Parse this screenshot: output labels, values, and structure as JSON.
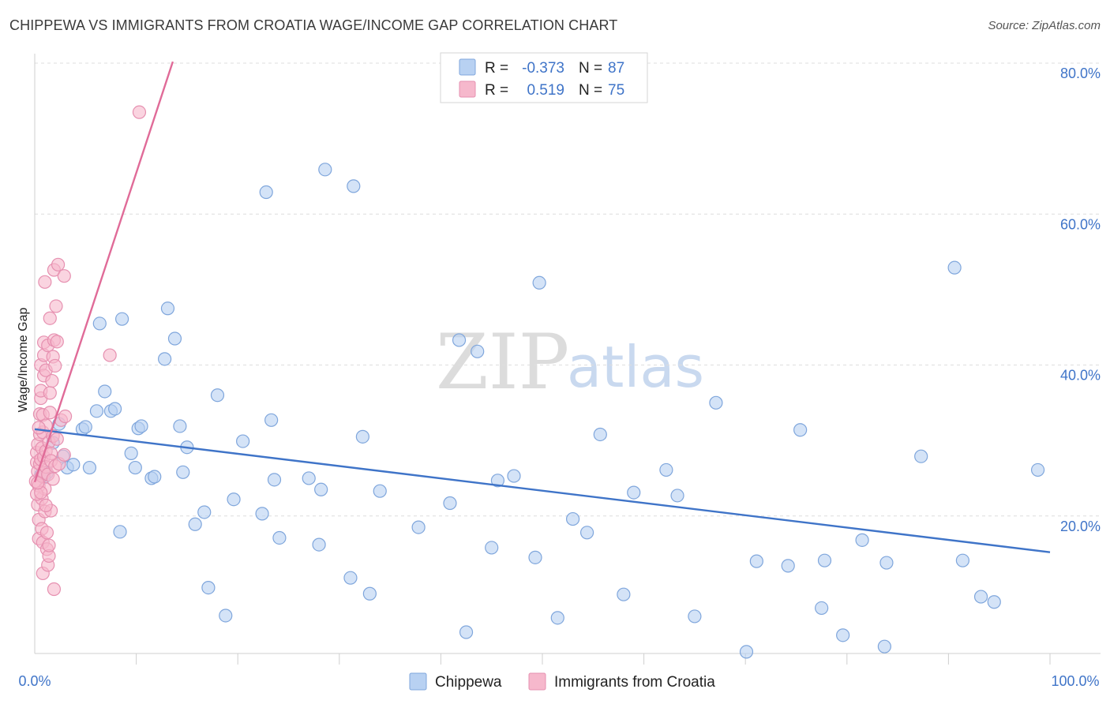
{
  "header": {
    "title": "CHIPPEWA VS IMMIGRANTS FROM CROATIA WAGE/INCOME GAP CORRELATION CHART",
    "source": "Source: ZipAtlas.com"
  },
  "watermark": {
    "zip": "ZIP",
    "atlas": "atlas"
  },
  "colors": {
    "blue": "#3f74c8",
    "blue_fill": "#b8d1f2",
    "pink": "#e06b98",
    "pink_fill": "#f6b8cc",
    "grid": "#dedede"
  },
  "chart_data": {
    "type": "scatter",
    "title": "CHIPPEWA VS IMMIGRANTS FROM CROATIA WAGE/INCOME GAP CORRELATION CHART",
    "xlabel": "",
    "ylabel": "Wage/Income Gap",
    "xlim": [
      0,
      100
    ],
    "ylim": [
      0,
      82
    ],
    "x_tick_labels": [
      "0.0%",
      "100.0%"
    ],
    "y_ticks": [
      20,
      40,
      60,
      80
    ],
    "y_tick_labels": [
      "20.0%",
      "40.0%",
      "60.0%",
      "80.0%"
    ],
    "grid": true,
    "legend": {
      "position": "top-center",
      "entries": [
        {
          "r_label": "R =",
          "r_value": "-0.373",
          "n_label": "N =",
          "n_value": "87"
        },
        {
          "r_label": "R =",
          "r_value": "0.519",
          "n_label": "N =",
          "n_value": "75"
        }
      ]
    },
    "series": [
      {
        "name": "Chippewa",
        "color": "#3f74c8",
        "r": -0.373,
        "n": 87,
        "trend": {
          "x": [
            0,
            100
          ],
          "y": [
            31.5,
            15.2
          ]
        },
        "points": [
          [
            0.6,
            25.4
          ],
          [
            1.2,
            25.7
          ],
          [
            1.8,
            29.7
          ],
          [
            2.4,
            32.2
          ],
          [
            2.8,
            27.9
          ],
          [
            3.2,
            26.4
          ],
          [
            3.8,
            26.8
          ],
          [
            4.7,
            31.5
          ],
          [
            5.0,
            31.8
          ],
          [
            5.4,
            26.4
          ],
          [
            6.1,
            33.9
          ],
          [
            6.4,
            45.5
          ],
          [
            6.9,
            36.5
          ],
          [
            7.5,
            33.9
          ],
          [
            7.9,
            34.2
          ],
          [
            8.4,
            17.9
          ],
          [
            8.6,
            46.1
          ],
          [
            9.5,
            28.3
          ],
          [
            9.9,
            26.4
          ],
          [
            10.2,
            31.6
          ],
          [
            10.5,
            31.9
          ],
          [
            11.5,
            25.0
          ],
          [
            11.8,
            25.2
          ],
          [
            12.8,
            40.8
          ],
          [
            13.1,
            47.5
          ],
          [
            13.8,
            43.5
          ],
          [
            14.3,
            31.9
          ],
          [
            14.6,
            25.8
          ],
          [
            15.0,
            29.1
          ],
          [
            15.8,
            18.9
          ],
          [
            16.7,
            20.5
          ],
          [
            17.1,
            10.5
          ],
          [
            18.0,
            36.0
          ],
          [
            18.8,
            6.8
          ],
          [
            19.6,
            22.2
          ],
          [
            20.5,
            29.9
          ],
          [
            22.4,
            20.3
          ],
          [
            22.8,
            62.9
          ],
          [
            23.3,
            32.7
          ],
          [
            23.6,
            24.8
          ],
          [
            24.1,
            17.1
          ],
          [
            27.0,
            25.0
          ],
          [
            28.0,
            16.2
          ],
          [
            28.2,
            23.5
          ],
          [
            28.6,
            65.9
          ],
          [
            31.1,
            11.8
          ],
          [
            31.4,
            63.7
          ],
          [
            32.3,
            30.5
          ],
          [
            33.0,
            9.7
          ],
          [
            34.0,
            23.3
          ],
          [
            37.8,
            18.5
          ],
          [
            40.9,
            21.7
          ],
          [
            41.8,
            43.3
          ],
          [
            42.5,
            4.6
          ],
          [
            43.6,
            41.8
          ],
          [
            45.0,
            15.8
          ],
          [
            45.6,
            24.7
          ],
          [
            47.2,
            25.3
          ],
          [
            49.3,
            14.5
          ],
          [
            49.7,
            50.9
          ],
          [
            51.5,
            6.5
          ],
          [
            53.0,
            19.6
          ],
          [
            54.4,
            17.8
          ],
          [
            55.7,
            30.8
          ],
          [
            58.0,
            9.6
          ],
          [
            59.0,
            23.1
          ],
          [
            62.2,
            26.1
          ],
          [
            63.3,
            22.7
          ],
          [
            65.0,
            6.7
          ],
          [
            67.1,
            35.0
          ],
          [
            70.1,
            2.0
          ],
          [
            71.1,
            14.0
          ],
          [
            74.2,
            13.4
          ],
          [
            75.4,
            31.4
          ],
          [
            77.5,
            7.8
          ],
          [
            77.8,
            14.1
          ],
          [
            79.6,
            4.2
          ],
          [
            81.5,
            16.8
          ],
          [
            83.7,
            2.7
          ],
          [
            83.9,
            13.8
          ],
          [
            87.3,
            27.9
          ],
          [
            90.6,
            52.9
          ],
          [
            91.4,
            14.1
          ],
          [
            93.2,
            9.3
          ],
          [
            94.5,
            8.6
          ],
          [
            98.8,
            26.1
          ],
          [
            0.9,
            25.1
          ]
        ]
      },
      {
        "name": "Immigrants from Croatia",
        "color": "#e06b98",
        "r": 0.519,
        "n": 75,
        "trend": {
          "x": [
            0,
            13.6
          ],
          "y": [
            24.5,
            80.2
          ]
        },
        "points": [
          [
            0.1,
            24.6
          ],
          [
            0.2,
            27.1
          ],
          [
            0.2,
            28.4
          ],
          [
            0.3,
            21.5
          ],
          [
            0.3,
            25.9
          ],
          [
            0.3,
            29.5
          ],
          [
            0.4,
            17.0
          ],
          [
            0.4,
            19.5
          ],
          [
            0.4,
            24.0
          ],
          [
            0.5,
            26.9
          ],
          [
            0.5,
            30.8
          ],
          [
            0.5,
            33.5
          ],
          [
            0.6,
            27.5
          ],
          [
            0.6,
            35.6
          ],
          [
            0.6,
            36.6
          ],
          [
            0.6,
            40.0
          ],
          [
            0.7,
            22.3
          ],
          [
            0.7,
            25.3
          ],
          [
            0.7,
            29.0
          ],
          [
            0.7,
            18.3
          ],
          [
            0.8,
            31.1
          ],
          [
            0.8,
            16.5
          ],
          [
            0.8,
            12.4
          ],
          [
            0.8,
            33.4
          ],
          [
            0.9,
            25.7
          ],
          [
            0.9,
            27.8
          ],
          [
            0.9,
            38.6
          ],
          [
            0.9,
            41.3
          ],
          [
            0.9,
            43.0
          ],
          [
            1.0,
            20.6
          ],
          [
            1.0,
            23.6
          ],
          [
            1.0,
            51.0
          ],
          [
            1.1,
            26.5
          ],
          [
            1.1,
            28.6
          ],
          [
            1.1,
            32.0
          ],
          [
            1.1,
            39.3
          ],
          [
            1.2,
            15.6
          ],
          [
            1.2,
            17.8
          ],
          [
            1.3,
            13.5
          ],
          [
            1.3,
            42.6
          ],
          [
            1.3,
            25.5
          ],
          [
            1.4,
            29.8
          ],
          [
            1.4,
            14.7
          ],
          [
            1.4,
            16.1
          ],
          [
            1.5,
            33.7
          ],
          [
            1.5,
            36.3
          ],
          [
            1.5,
            46.2
          ],
          [
            1.6,
            20.7
          ],
          [
            1.6,
            28.3
          ],
          [
            1.6,
            27.3
          ],
          [
            1.7,
            37.9
          ],
          [
            1.8,
            30.6
          ],
          [
            1.8,
            41.1
          ],
          [
            1.8,
            24.9
          ],
          [
            1.9,
            43.3
          ],
          [
            1.9,
            52.6
          ],
          [
            1.9,
            10.3
          ],
          [
            2.0,
            26.6
          ],
          [
            2.0,
            39.9
          ],
          [
            2.1,
            47.8
          ],
          [
            2.2,
            43.1
          ],
          [
            2.2,
            30.2
          ],
          [
            2.3,
            53.3
          ],
          [
            2.4,
            26.9
          ],
          [
            2.6,
            32.7
          ],
          [
            2.9,
            51.8
          ],
          [
            2.9,
            28.1
          ],
          [
            3.0,
            33.2
          ],
          [
            7.4,
            41.3
          ],
          [
            10.3,
            73.5
          ],
          [
            0.2,
            22.9
          ],
          [
            0.4,
            31.7
          ],
          [
            0.6,
            23.1
          ],
          [
            1.1,
            21.4
          ],
          [
            0.3,
            24.4
          ]
        ]
      }
    ]
  }
}
